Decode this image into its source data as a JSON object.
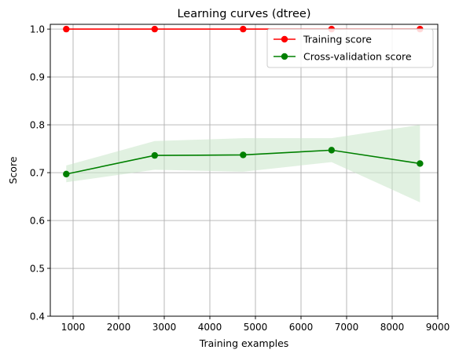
{
  "chart_data": {
    "type": "line",
    "title": "Learning curves (dtree)",
    "xlabel": "Training examples",
    "ylabel": "Score",
    "xlim": [
      500,
      9000
    ],
    "ylim": [
      0.4,
      1.01
    ],
    "xticks": [
      1000,
      2000,
      3000,
      4000,
      5000,
      6000,
      7000,
      8000,
      9000
    ],
    "yticks": [
      0.4,
      0.5,
      0.6,
      0.7,
      0.8,
      0.9,
      1.0
    ],
    "grid": true,
    "legend_position": "top-right",
    "x": [
      850,
      2790,
      4730,
      6670,
      8610
    ],
    "series": [
      {
        "name": "Training score",
        "color": "#ff0000",
        "values": [
          1.0,
          1.0,
          1.0,
          1.0,
          1.0
        ],
        "band_lower": [
          1.0,
          1.0,
          1.0,
          1.0,
          1.0
        ],
        "band_upper": [
          1.0,
          1.0,
          1.0,
          1.0,
          1.0
        ]
      },
      {
        "name": "Cross-validation score",
        "color": "#008000",
        "band_color": "#c8e6c8",
        "values": [
          0.697,
          0.736,
          0.737,
          0.747,
          0.719
        ],
        "band_lower": [
          0.68,
          0.706,
          0.702,
          0.722,
          0.638
        ],
        "band_upper": [
          0.715,
          0.766,
          0.772,
          0.772,
          0.8
        ]
      }
    ]
  }
}
